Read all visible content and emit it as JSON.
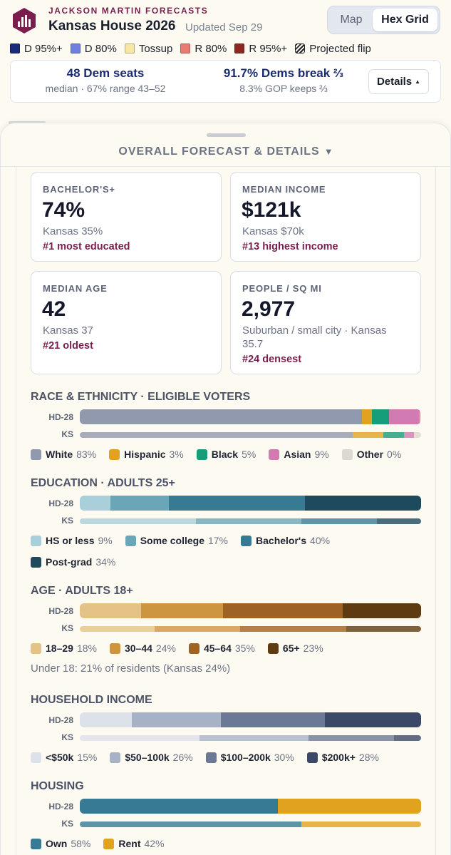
{
  "header": {
    "brand": "JACKSON MARTIN FORECASTS",
    "title": "Kansas House 2026",
    "updated": "Updated Sep 29",
    "view_toggle": {
      "map": "Map",
      "hex": "Hex Grid",
      "active": "Hex Grid"
    }
  },
  "legend": [
    {
      "label": "D 95%+",
      "color": "#1a2a78"
    },
    {
      "label": "D 80%",
      "color": "#6f7fe0"
    },
    {
      "label": "Tossup",
      "color": "#f7e6a6"
    },
    {
      "label": "R 80%",
      "color": "#ea7b73"
    },
    {
      "label": "R 95%+",
      "color": "#8e2622"
    },
    {
      "label": "Projected flip",
      "color": "hatch"
    }
  ],
  "summary": {
    "seats_main": "48 Dem seats",
    "seats_sub": "median · 67% range 43–52",
    "break_main": "91.7% Dems break ⅔",
    "break_sub": "8.3% GOP keeps ⅔",
    "details_label": "Details"
  },
  "sheet": {
    "title": "OVERALL FORECAST & DETAILS",
    "cards": [
      {
        "label": "BACHELOR'S+",
        "value": "74%",
        "compare": "Kansas 35%",
        "rank": "#1 most educated"
      },
      {
        "label": "MEDIAN INCOME",
        "value": "$121k",
        "compare": "Kansas $70k",
        "rank": "#13 highest income"
      },
      {
        "label": "MEDIAN AGE",
        "value": "42",
        "compare": "Kansas 37",
        "rank": "#21 oldest"
      },
      {
        "label": "PEOPLE / SQ MI",
        "value": "2,977",
        "compare": "Suburban / small city · Kansas 35.7",
        "rank": "#24 densest"
      }
    ]
  },
  "row_labels": {
    "district": "HD-28",
    "state": "KS"
  },
  "sections": [
    {
      "title": "RACE & ETHNICITY · ELIGIBLE VOTERS",
      "district": [
        83,
        3,
        5,
        9,
        0.4
      ],
      "state": [
        80,
        9,
        6,
        3,
        2
      ],
      "legend": [
        {
          "label": "White",
          "pct": "83%",
          "color": "#9099ae"
        },
        {
          "label": "Hispanic",
          "pct": "3%",
          "color": "#e0a21f"
        },
        {
          "label": "Black",
          "pct": "5%",
          "color": "#169e78"
        },
        {
          "label": "Asian",
          "pct": "9%",
          "color": "#d27ab2"
        },
        {
          "label": "Other",
          "pct": "0%",
          "color": "#dcd9d0"
        }
      ]
    },
    {
      "title": "EDUCATION · ADULTS 25+",
      "district": [
        9,
        17,
        40,
        34
      ],
      "state": [
        34,
        31,
        22,
        13
      ],
      "legend": [
        {
          "label": "HS or less",
          "pct": "9%",
          "color": "#a9d0da"
        },
        {
          "label": "Some college",
          "pct": "17%",
          "color": "#6aa6b8"
        },
        {
          "label": "Bachelor's",
          "pct": "40%",
          "color": "#367b93"
        },
        {
          "label": "Post-grad",
          "pct": "34%",
          "color": "#1e4a5e"
        }
      ]
    },
    {
      "title": "AGE · ADULTS 18+",
      "district": [
        18,
        24,
        35,
        23
      ],
      "state": [
        22,
        25,
        31,
        22
      ],
      "legend": [
        {
          "label": "18–29",
          "pct": "18%",
          "color": "#e5c386"
        },
        {
          "label": "30–44",
          "pct": "24%",
          "color": "#cd9540"
        },
        {
          "label": "45–64",
          "pct": "35%",
          "color": "#9e6224"
        },
        {
          "label": "65+",
          "pct": "23%",
          "color": "#5f3b12"
        }
      ],
      "note": "Under 18: 21% of residents (Kansas 24%)"
    },
    {
      "title": "HOUSEHOLD INCOME",
      "district": [
        15,
        26,
        30,
        28
      ],
      "state": [
        35,
        32,
        25,
        8
      ],
      "legend": [
        {
          "label": "<$50k",
          "pct": "15%",
          "color": "#dde1ea"
        },
        {
          "label": "$50–100k",
          "pct": "26%",
          "color": "#a8b2c7"
        },
        {
          "label": "$100–200k",
          "pct": "30%",
          "color": "#6c7996"
        },
        {
          "label": "$200k+",
          "pct": "28%",
          "color": "#3c4868"
        }
      ]
    },
    {
      "title": "HOUSING",
      "district": [
        58,
        42
      ],
      "state": [
        65,
        35
      ],
      "legend": [
        {
          "label": "Own",
          "pct": "58%",
          "color": "#367b93"
        },
        {
          "label": "Rent",
          "pct": "42%",
          "color": "#e0a21f"
        }
      ]
    }
  ]
}
